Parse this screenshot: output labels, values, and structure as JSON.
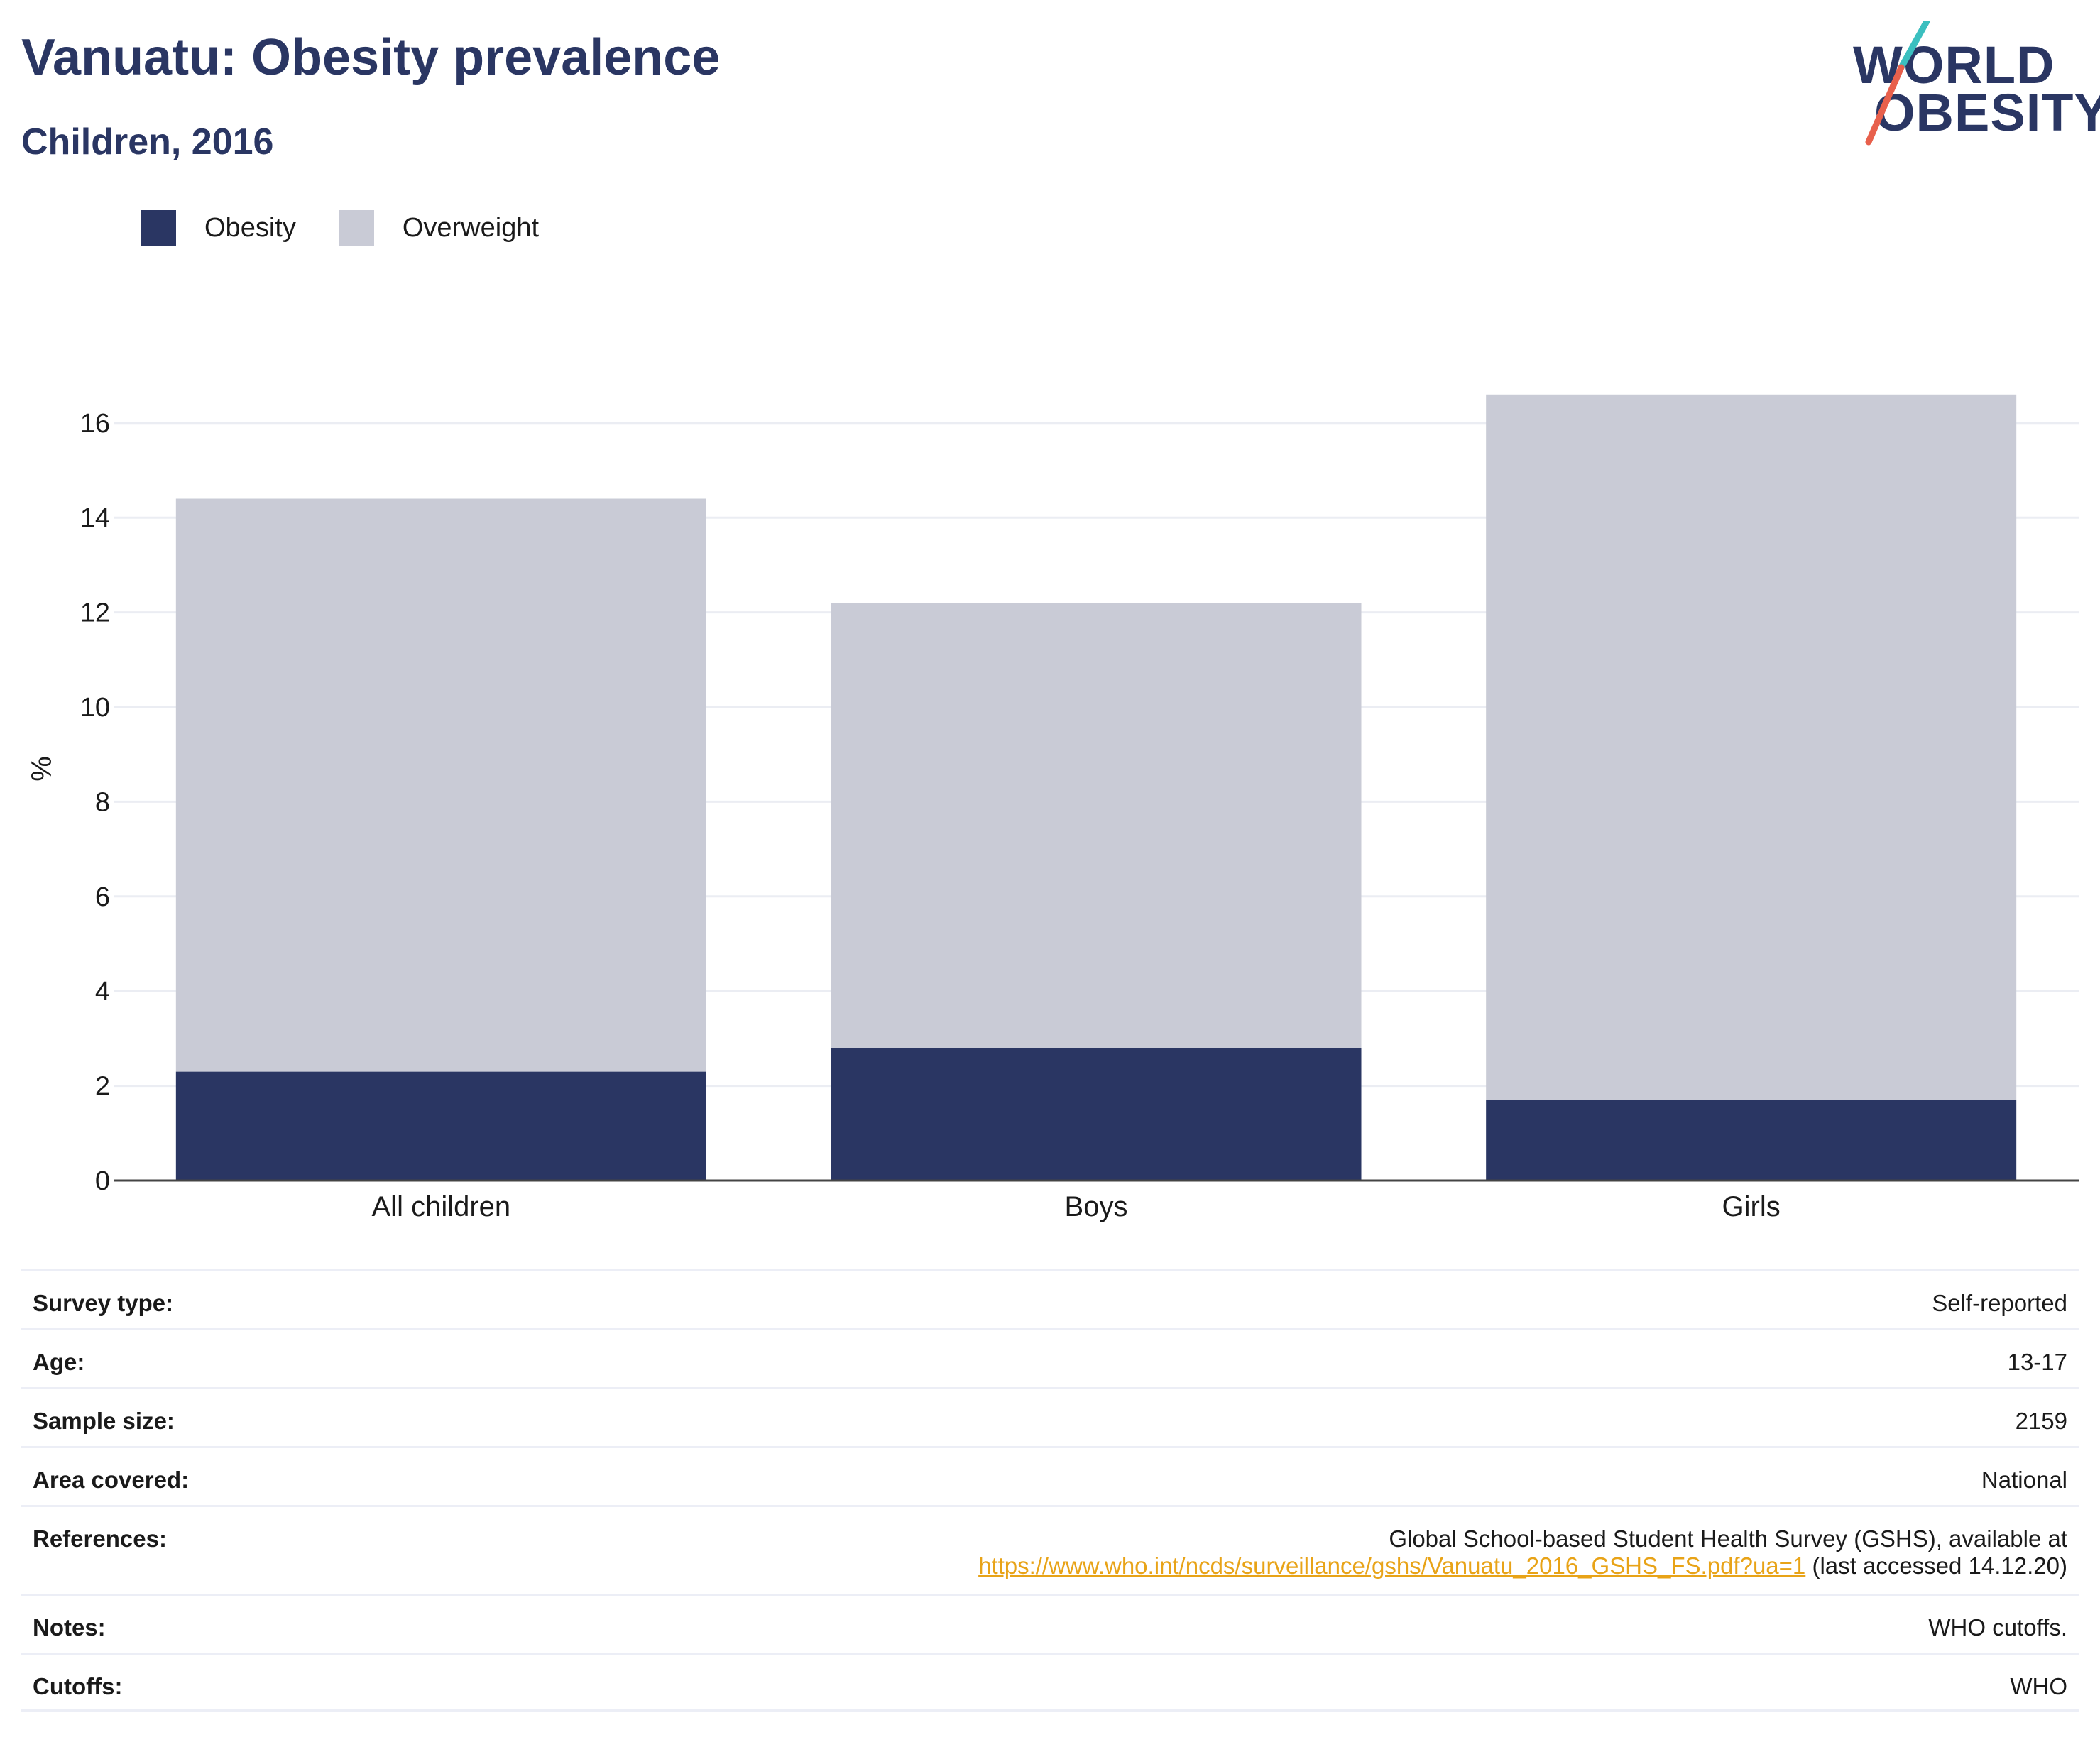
{
  "header": {
    "title": "Vanuatu: Obesity prevalence",
    "subtitle": "Children, 2016"
  },
  "logo": {
    "line1": "WORLD",
    "line2": "OBESITY",
    "colors": {
      "text": "#2a3663",
      "slash_top": "#3bbfbf",
      "slash_bottom": "#e8604c"
    }
  },
  "legend": [
    {
      "label": "Obesity",
      "color": "#2a3663"
    },
    {
      "label": "Overweight",
      "color": "#c9cbd6"
    }
  ],
  "chart_data": {
    "type": "bar",
    "stacked": true,
    "title": "Vanuatu: Obesity prevalence",
    "subtitle": "Children, 2016",
    "categories": [
      "All children",
      "Boys",
      "Girls"
    ],
    "series": [
      {
        "name": "Obesity",
        "values": [
          2.3,
          2.8,
          1.7
        ],
        "color": "#2a3663"
      },
      {
        "name": "Overweight",
        "values": [
          12.1,
          9.4,
          14.9
        ],
        "color": "#c9cbd6"
      }
    ],
    "xlabel": "",
    "ylabel": "%",
    "ylim": [
      0,
      17
    ],
    "yticks": [
      0,
      2,
      4,
      6,
      8,
      10,
      12,
      14,
      16
    ],
    "grid": true,
    "legend_position": "top-left"
  },
  "info": {
    "survey_type": {
      "label": "Survey type:",
      "value": "Self-reported"
    },
    "age": {
      "label": "Age:",
      "value": "13-17"
    },
    "sample_size": {
      "label": "Sample size:",
      "value": "2159"
    },
    "area_covered": {
      "label": "Area covered:",
      "value": "National"
    },
    "references": {
      "label": "References:",
      "line1": "Global School-based Student Health Survey (GSHS), available at",
      "link": "https://www.who.int/ncds/surveillance/gshs/Vanuatu_2016_GSHS_FS.pdf?ua=1",
      "suffix": " (last accessed 14.12.20)"
    },
    "notes": {
      "label": "Notes:",
      "value": "WHO cutoffs."
    },
    "cutoffs": {
      "label": "Cutoffs:",
      "value": "WHO"
    }
  }
}
